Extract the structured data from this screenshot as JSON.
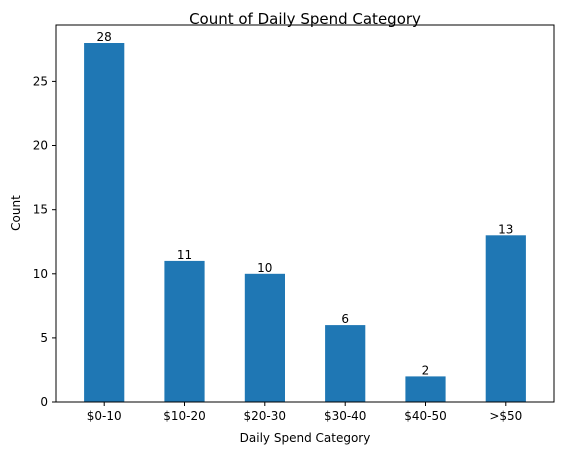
{
  "chart_data": {
    "type": "bar",
    "title": "Count of Daily Spend Category",
    "xlabel": "Daily Spend Category",
    "ylabel": "Count",
    "categories": [
      "$0-10",
      "$10-20",
      "$20-30",
      "$30-40",
      "$40-50",
      ">$50"
    ],
    "values": [
      28,
      11,
      10,
      6,
      2,
      13
    ],
    "ylim": [
      0,
      29.4
    ],
    "yticks": [
      0,
      5,
      10,
      15,
      20,
      25
    ],
    "bar_color": "#1f77b4",
    "grid": false,
    "legend": false
  }
}
